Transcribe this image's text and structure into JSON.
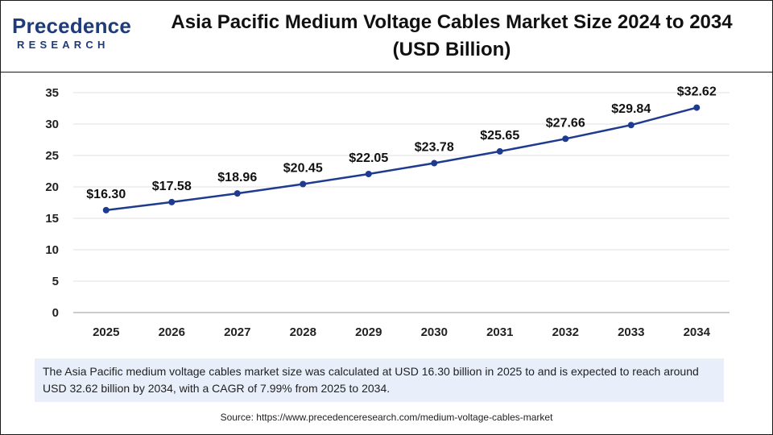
{
  "brand": {
    "name": "Precedence",
    "sub": "RESEARCH",
    "color": "#1f3b7a"
  },
  "title": "Asia Pacific Medium Voltage Cables Market Size 2024 to 2034 (USD Billion)",
  "summary": "The Asia Pacific medium voltage cables market size was calculated at USD 16.30 billion in 2025 to and is expected to reach around USD 32.62 billion by 2034, with a CAGR of 7.99% from 2025 to 2034.",
  "source": "Source: https://www.precedenceresearch.com/medium-voltage-cables-market",
  "chart_data": {
    "type": "line",
    "x": [
      "2025",
      "2026",
      "2027",
      "2028",
      "2029",
      "2030",
      "2031",
      "2032",
      "2033",
      "2034"
    ],
    "series": [
      {
        "values": [
          16.3,
          17.58,
          18.96,
          20.45,
          22.05,
          23.78,
          25.65,
          27.66,
          29.84,
          32.62
        ],
        "labels": [
          "$16.30",
          "$17.58",
          "$18.96",
          "$20.45",
          "$22.05",
          "$23.78",
          "$25.65",
          "$27.66",
          "$29.84",
          "$32.62"
        ],
        "color": "#1f3b8f"
      }
    ],
    "ylim": [
      0,
      35
    ],
    "yticks": [
      "0",
      "5",
      "10",
      "15",
      "20",
      "25",
      "30",
      "35"
    ],
    "grid": true,
    "xlabel": "",
    "ylabel": ""
  }
}
